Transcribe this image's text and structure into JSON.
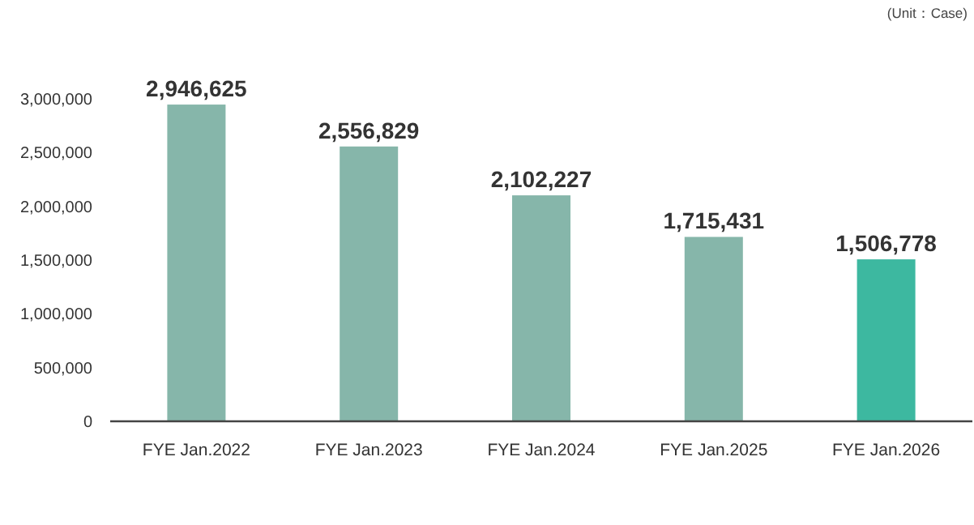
{
  "chart_data": {
    "type": "bar",
    "categories": [
      "FYE Jan.2022",
      "FYE Jan.2023",
      "FYE Jan.2024",
      "FYE Jan.2025",
      "FYE Jan.2026"
    ],
    "values": [
      2946625,
      2556829,
      2102227,
      1715431,
      1506778
    ],
    "value_labels": [
      "2,946,625",
      "2,556,829",
      "2,102,227",
      "1,715,431",
      "1,506,778"
    ],
    "colors": [
      "#86b6aa",
      "#86b6aa",
      "#86b6aa",
      "#86b6aa",
      "#3db8a0"
    ],
    "ylim": [
      0,
      3000000
    ],
    "yticks": [
      {
        "value": 0,
        "label": "0"
      },
      {
        "value": 500000,
        "label": "500,000"
      },
      {
        "value": 1000000,
        "label": "1,000,000"
      },
      {
        "value": 1500000,
        "label": "1,500,000"
      },
      {
        "value": 2000000,
        "label": "2,000,000"
      },
      {
        "value": 2500000,
        "label": "2,500,000"
      },
      {
        "value": 3000000,
        "label": "3,000,000"
      }
    ],
    "annotations": [
      "(Unit：Case)"
    ]
  }
}
